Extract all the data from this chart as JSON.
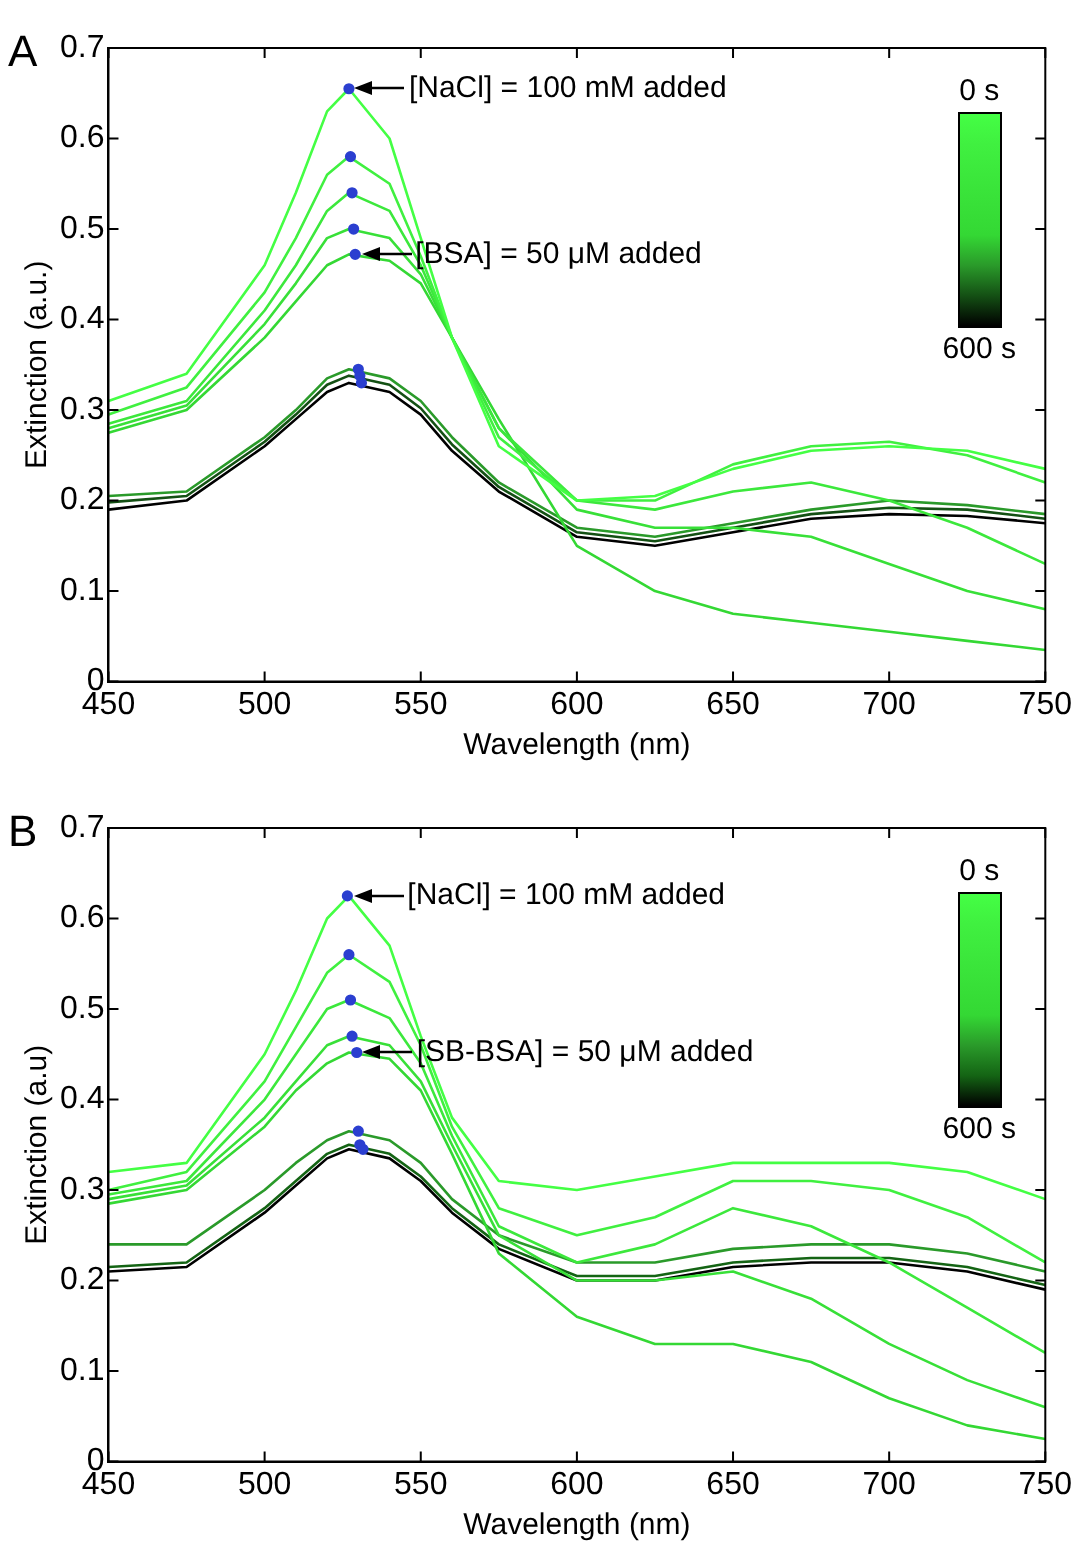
{
  "chart_data": [
    {
      "type": "line",
      "title": "A",
      "xlabel": "Wavelength (nm)",
      "ylabel": "Extinction (a.u.)",
      "x": [
        450,
        475,
        500,
        510,
        520,
        527,
        540,
        550,
        560,
        575,
        600,
        625,
        650,
        675,
        700,
        725,
        750
      ],
      "xlim": [
        450,
        750
      ],
      "xticks": [
        450,
        500,
        550,
        600,
        650,
        700,
        750
      ],
      "ylim": [
        0,
        0.7
      ],
      "yticks": [
        0,
        0.1,
        0.2,
        0.3,
        0.4,
        0.5,
        0.6,
        0.7
      ],
      "grid": false,
      "legend": false,
      "marker": "none",
      "line_style": "solid",
      "annotations": [
        {
          "text": "[NaCl] = 100 mM added",
          "x": 527,
          "y": 0.655
        },
        {
          "text": "[BSA] = 50 μM added",
          "x": 529,
          "y": 0.472
        },
        "0 s",
        "600 s"
      ],
      "series": [
        {
          "color": "#44ff44",
          "values": [
            0.31,
            0.34,
            0.46,
            0.54,
            0.63,
            0.655,
            0.6,
            0.49,
            0.38,
            0.26,
            0.2,
            0.205,
            0.235,
            0.255,
            0.26,
            0.255,
            0.235
          ]
        },
        {
          "color": "#40f040",
          "values": [
            0.295,
            0.325,
            0.43,
            0.49,
            0.56,
            0.58,
            0.55,
            0.47,
            0.38,
            0.27,
            0.2,
            0.2,
            0.24,
            0.26,
            0.265,
            0.25,
            0.22
          ]
        },
        {
          "color": "#3ce83c",
          "values": [
            0.285,
            0.31,
            0.41,
            0.46,
            0.52,
            0.54,
            0.52,
            0.46,
            0.38,
            0.28,
            0.2,
            0.19,
            0.21,
            0.22,
            0.2,
            0.17,
            0.13
          ]
        },
        {
          "color": "#38e038",
          "values": [
            0.28,
            0.305,
            0.395,
            0.44,
            0.49,
            0.5,
            0.49,
            0.45,
            0.38,
            0.28,
            0.19,
            0.17,
            0.17,
            0.16,
            0.13,
            0.1,
            0.08
          ]
        },
        {
          "color": "#34d834",
          "values": [
            0.275,
            0.3,
            0.38,
            0.42,
            0.46,
            0.472,
            0.465,
            0.44,
            0.38,
            0.29,
            0.15,
            0.1,
            0.075,
            0.065,
            0.055,
            0.045,
            0.035
          ]
        },
        {
          "color": "#2a9a2a",
          "values": [
            0.205,
            0.21,
            0.27,
            0.3,
            0.335,
            0.345,
            0.335,
            0.31,
            0.27,
            0.22,
            0.17,
            0.16,
            0.175,
            0.19,
            0.2,
            0.195,
            0.185
          ]
        },
        {
          "color": "#145014",
          "values": [
            0.198,
            0.205,
            0.265,
            0.295,
            0.328,
            0.338,
            0.328,
            0.302,
            0.262,
            0.215,
            0.165,
            0.155,
            0.17,
            0.185,
            0.192,
            0.19,
            0.18
          ]
        },
        {
          "color": "#000000",
          "values": [
            0.19,
            0.2,
            0.26,
            0.29,
            0.32,
            0.33,
            0.32,
            0.295,
            0.255,
            0.21,
            0.16,
            0.15,
            0.165,
            0.18,
            0.185,
            0.183,
            0.175
          ]
        },
        {
          "type": "scatter",
          "color": "#2b3fd0",
          "marker": "circle",
          "x": [
            527,
            527.5,
            528,
            528.5,
            529,
            530,
            530.5,
            531
          ],
          "values": [
            0.655,
            0.58,
            0.54,
            0.5,
            0.472,
            0.345,
            0.338,
            0.33
          ]
        }
      ]
    },
    {
      "type": "line",
      "title": "B",
      "xlabel": "Wavelength (nm)",
      "ylabel": "Extinction (a.u)",
      "x": [
        450,
        475,
        500,
        510,
        520,
        527,
        540,
        550,
        560,
        575,
        600,
        625,
        650,
        675,
        700,
        725,
        750
      ],
      "xlim": [
        450,
        750
      ],
      "xticks": [
        450,
        500,
        550,
        600,
        650,
        700,
        750
      ],
      "ylim": [
        0,
        0.7
      ],
      "yticks": [
        0,
        0.1,
        0.2,
        0.3,
        0.4,
        0.5,
        0.6,
        0.7
      ],
      "grid": false,
      "legend": false,
      "marker": "none",
      "line_style": "solid",
      "annotations": [
        {
          "text": "[NaCl] = 100 mM added",
          "x": 526.5,
          "y": 0.625
        },
        {
          "text": "[SB-BSA] = 50 μM added",
          "x": 529.5,
          "y": 0.452
        },
        "0 s",
        "600 s"
      ],
      "series": [
        {
          "color": "#44ff44",
          "values": [
            0.32,
            0.33,
            0.45,
            0.52,
            0.6,
            0.625,
            0.57,
            0.47,
            0.38,
            0.31,
            0.3,
            0.315,
            0.33,
            0.33,
            0.33,
            0.32,
            0.29
          ]
        },
        {
          "color": "#40f040",
          "values": [
            0.3,
            0.32,
            0.42,
            0.48,
            0.54,
            0.56,
            0.53,
            0.46,
            0.37,
            0.28,
            0.25,
            0.27,
            0.31,
            0.31,
            0.3,
            0.27,
            0.22
          ]
        },
        {
          "color": "#3ce83c",
          "values": [
            0.295,
            0.31,
            0.4,
            0.45,
            0.5,
            0.51,
            0.49,
            0.44,
            0.36,
            0.26,
            0.22,
            0.24,
            0.28,
            0.26,
            0.22,
            0.17,
            0.12
          ]
        },
        {
          "color": "#38e038",
          "values": [
            0.29,
            0.305,
            0.38,
            0.42,
            0.46,
            0.47,
            0.46,
            0.42,
            0.35,
            0.25,
            0.2,
            0.2,
            0.21,
            0.18,
            0.13,
            0.09,
            0.06
          ]
        },
        {
          "color": "#34d834",
          "values": [
            0.285,
            0.3,
            0.37,
            0.41,
            0.44,
            0.452,
            0.445,
            0.41,
            0.34,
            0.23,
            0.16,
            0.13,
            0.13,
            0.11,
            0.07,
            0.04,
            0.025
          ]
        },
        {
          "color": "#2a9a2a",
          "values": [
            0.24,
            0.24,
            0.3,
            0.33,
            0.355,
            0.365,
            0.355,
            0.33,
            0.29,
            0.25,
            0.22,
            0.22,
            0.235,
            0.24,
            0.24,
            0.23,
            0.21
          ]
        },
        {
          "color": "#146414",
          "values": [
            0.215,
            0.22,
            0.28,
            0.31,
            0.34,
            0.35,
            0.34,
            0.315,
            0.28,
            0.24,
            0.205,
            0.205,
            0.22,
            0.225,
            0.225,
            0.215,
            0.195
          ]
        },
        {
          "color": "#000000",
          "values": [
            0.21,
            0.215,
            0.275,
            0.305,
            0.335,
            0.345,
            0.335,
            0.31,
            0.275,
            0.235,
            0.2,
            0.2,
            0.215,
            0.22,
            0.22,
            0.21,
            0.19
          ]
        },
        {
          "type": "scatter",
          "color": "#2b3fd0",
          "marker": "circle",
          "x": [
            526.5,
            527,
            527.5,
            528,
            529.5,
            530,
            530.5,
            531.5
          ],
          "values": [
            0.625,
            0.56,
            0.51,
            0.47,
            0.452,
            0.365,
            0.35,
            0.345
          ]
        }
      ]
    }
  ]
}
